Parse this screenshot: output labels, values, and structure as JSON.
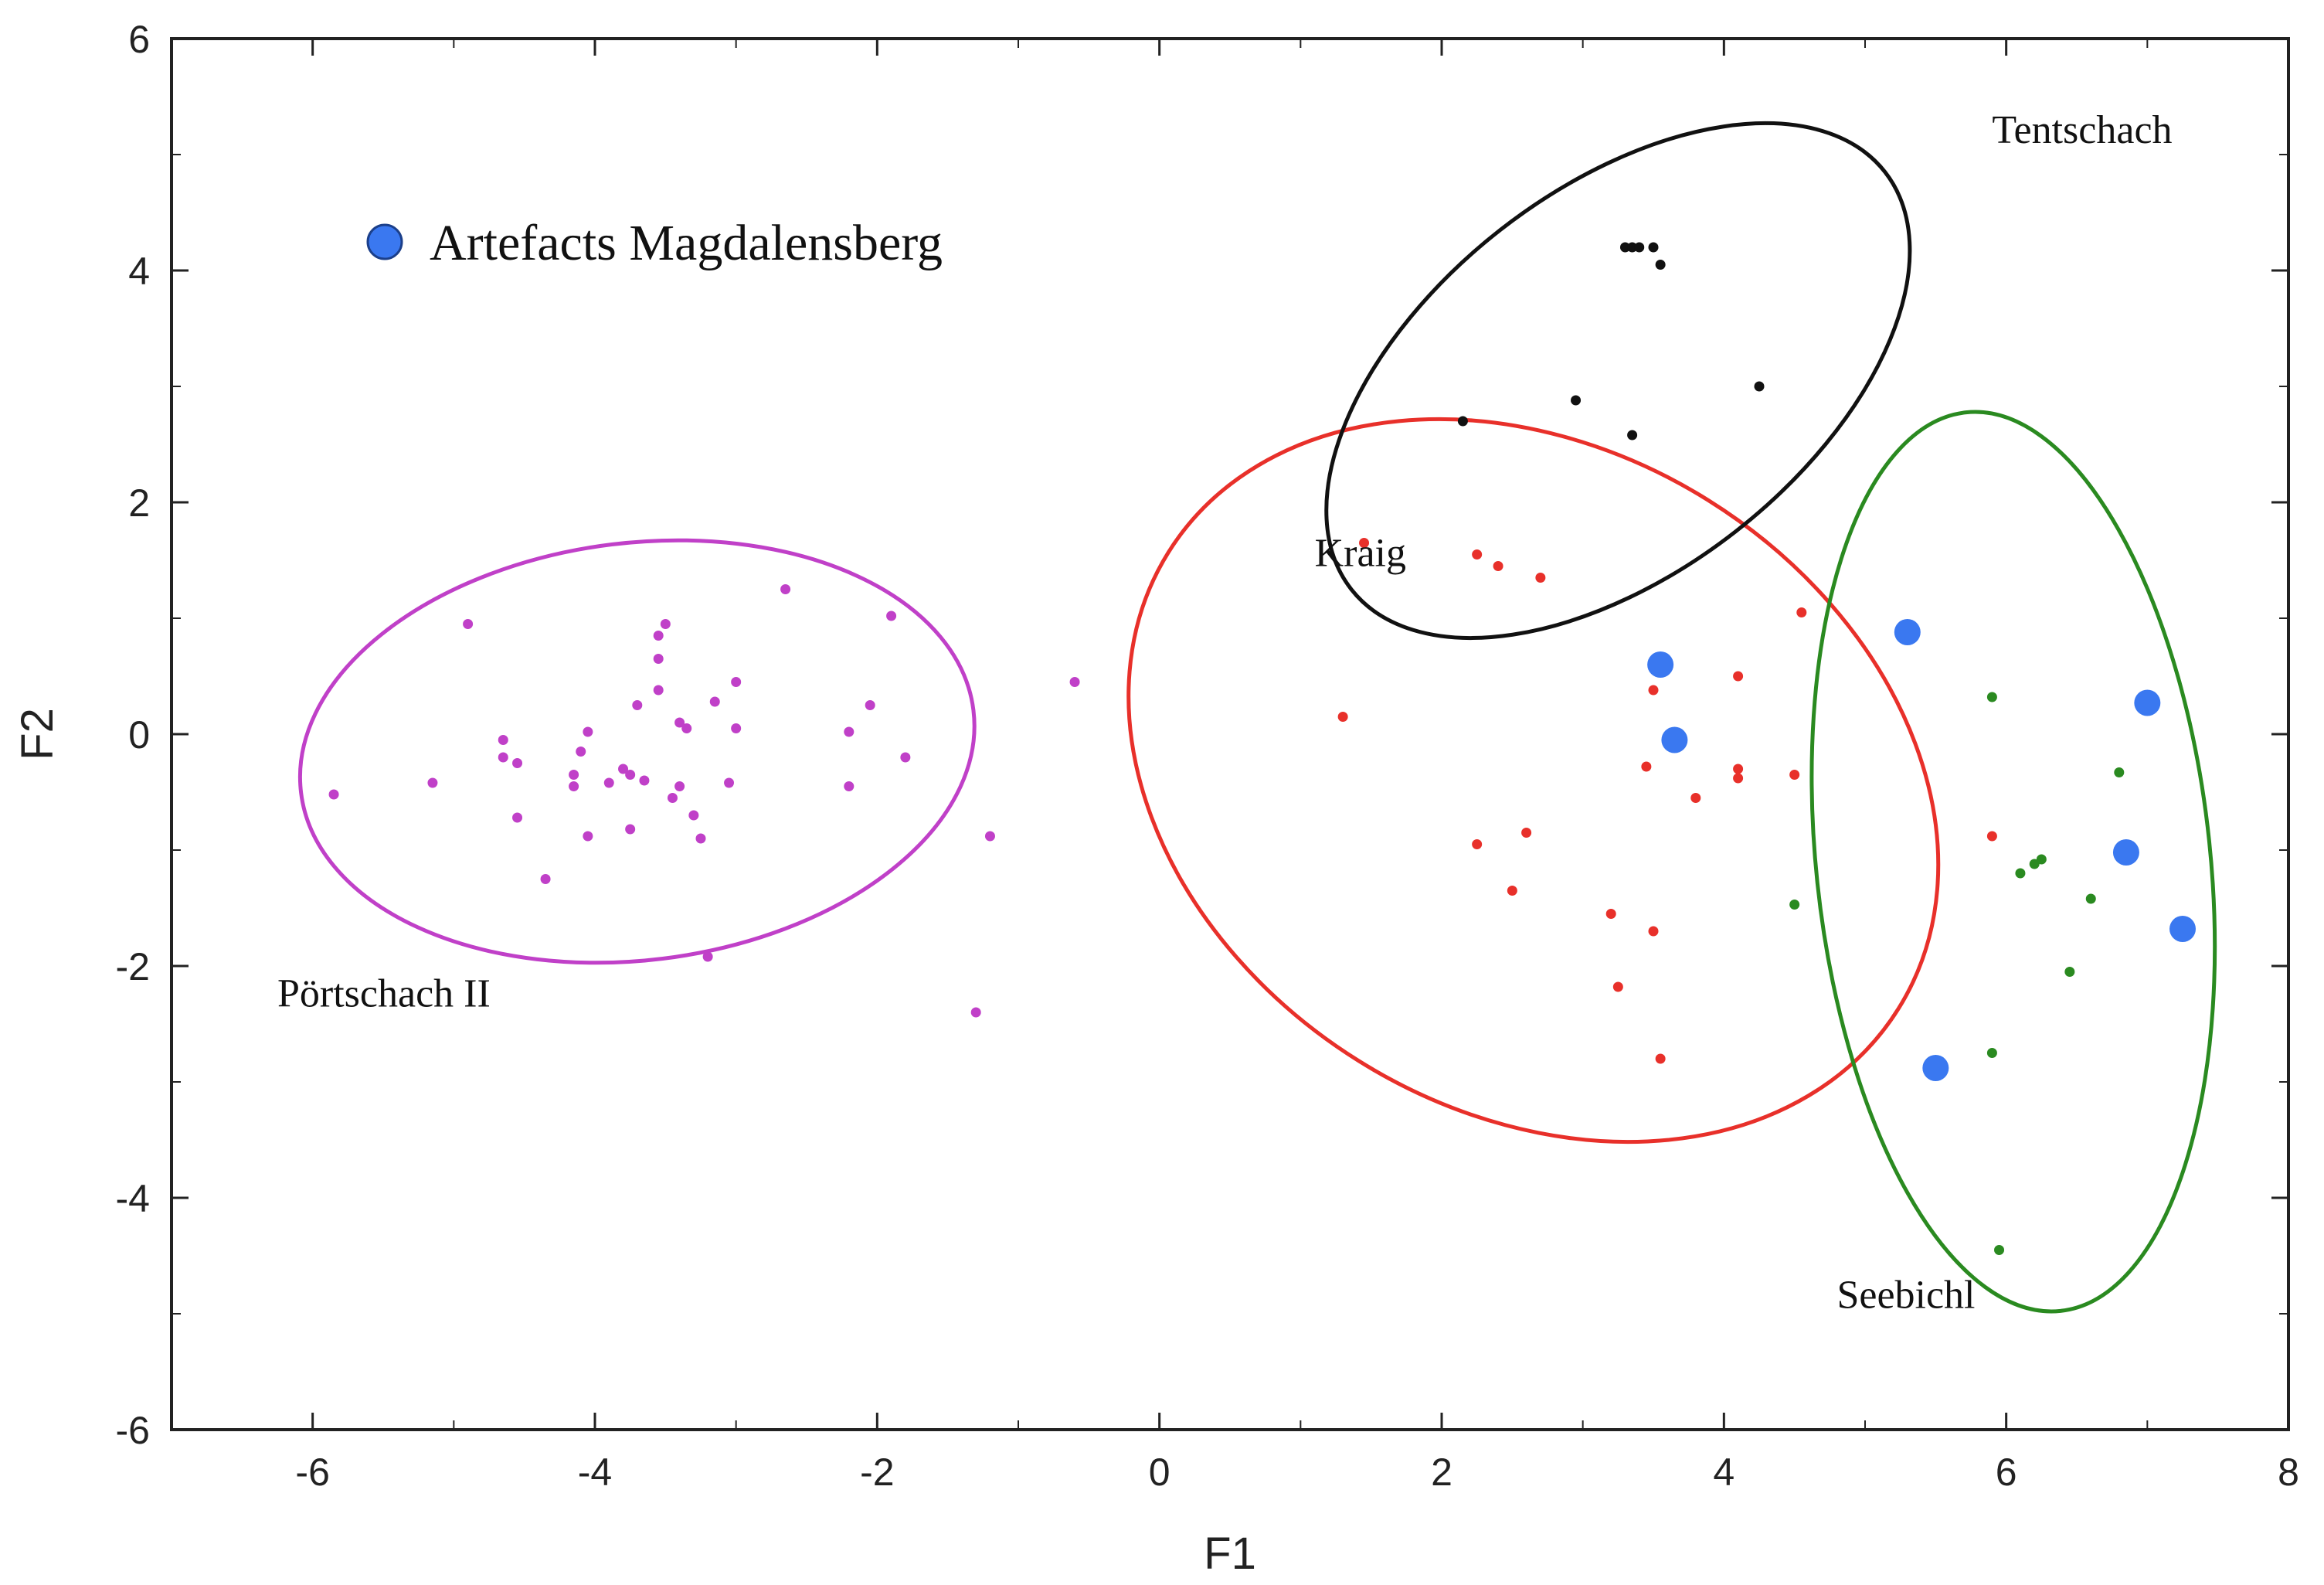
{
  "chart_data": {
    "type": "scatter",
    "title": "",
    "xlabel": "F1",
    "ylabel": "F2",
    "xlim": [
      -7,
      8
    ],
    "ylim": [
      -6,
      6
    ],
    "x_ticks": [
      -6,
      -4,
      -2,
      0,
      2,
      4,
      6,
      8
    ],
    "y_ticks": [
      -6,
      -4,
      -2,
      0,
      2,
      4,
      6
    ],
    "x_tick_labels": [
      "-6",
      "-4",
      "-2",
      "0",
      "2",
      "4",
      "6",
      "8"
    ],
    "y_tick_labels": [
      "-6",
      "-4",
      "-2",
      "0",
      "2",
      "4",
      "6"
    ],
    "grid": false,
    "legend": {
      "position": "top-left",
      "entries": [
        {
          "label": "Artefacts Magdalensberg",
          "color": "#3a78f0"
        }
      ]
    },
    "series": [
      {
        "name": "Pörtschach II",
        "color": "#c040c8",
        "ellipse": {
          "cx": -3.7,
          "cy": -0.15,
          "rx": 2.4,
          "ry": 1.8,
          "rotation": 7
        },
        "points": [
          [
            -5.85,
            -0.52
          ],
          [
            -5.15,
            -0.42
          ],
          [
            -4.9,
            0.95
          ],
          [
            -4.65,
            -0.05
          ],
          [
            -4.65,
            -0.2
          ],
          [
            -4.55,
            -0.25
          ],
          [
            -4.55,
            -0.72
          ],
          [
            -4.35,
            -1.25
          ],
          [
            -4.15,
            -0.35
          ],
          [
            -4.15,
            -0.45
          ],
          [
            -4.1,
            -0.15
          ],
          [
            -4.05,
            0.02
          ],
          [
            -4.05,
            -0.88
          ],
          [
            -3.9,
            -0.42
          ],
          [
            -3.8,
            -0.3
          ],
          [
            -3.75,
            -0.35
          ],
          [
            -3.75,
            -0.82
          ],
          [
            -3.7,
            0.25
          ],
          [
            -3.65,
            -0.4
          ],
          [
            -3.55,
            0.38
          ],
          [
            -3.55,
            0.65
          ],
          [
            -3.55,
            0.85
          ],
          [
            -3.5,
            0.95
          ],
          [
            -3.45,
            -0.55
          ],
          [
            -3.4,
            0.1
          ],
          [
            -3.4,
            -0.45
          ],
          [
            -3.35,
            0.05
          ],
          [
            -3.3,
            -0.7
          ],
          [
            -3.25,
            -0.9
          ],
          [
            -3.2,
            -1.92
          ],
          [
            -3.15,
            0.28
          ],
          [
            -3.05,
            -0.42
          ],
          [
            -3.0,
            0.45
          ],
          [
            -3.0,
            0.05
          ],
          [
            -2.65,
            1.25
          ],
          [
            -2.2,
            0.02
          ],
          [
            -2.2,
            -0.45
          ],
          [
            -2.05,
            0.25
          ],
          [
            -1.9,
            1.02
          ],
          [
            -1.8,
            -0.2
          ],
          [
            -1.3,
            -2.4
          ],
          [
            -1.2,
            -0.88
          ],
          [
            -0.6,
            0.45
          ]
        ]
      },
      {
        "name": "Kraig",
        "color": "#e8302a",
        "ellipse": {
          "cx": 2.65,
          "cy": -0.4,
          "rx": 3.05,
          "ry": 2.85,
          "rotation": -32
        },
        "points": [
          [
            1.3,
            0.15
          ],
          [
            1.45,
            1.65
          ],
          [
            2.25,
            1.55
          ],
          [
            2.25,
            -0.95
          ],
          [
            2.4,
            1.45
          ],
          [
            2.5,
            -1.35
          ],
          [
            2.6,
            -0.85
          ],
          [
            2.7,
            1.35
          ],
          [
            3.2,
            -1.55
          ],
          [
            3.25,
            -2.18
          ],
          [
            3.45,
            -0.28
          ],
          [
            3.5,
            0.38
          ],
          [
            3.5,
            -1.7
          ],
          [
            3.55,
            -2.8
          ],
          [
            3.8,
            -0.55
          ],
          [
            4.1,
            -0.3
          ],
          [
            4.1,
            -0.38
          ],
          [
            4.1,
            0.5
          ],
          [
            4.5,
            -0.35
          ],
          [
            4.55,
            1.05
          ],
          [
            5.9,
            -0.88
          ]
        ]
      },
      {
        "name": "Tentschach",
        "color": "#111111",
        "ellipse": {
          "cx": 3.25,
          "cy": 3.05,
          "rx": 2.4,
          "ry": 1.65,
          "rotation": 38
        },
        "points": [
          [
            2.15,
            2.7
          ],
          [
            2.95,
            2.88
          ],
          [
            3.3,
            4.2
          ],
          [
            3.35,
            2.58
          ],
          [
            3.35,
            4.2
          ],
          [
            3.4,
            4.2
          ],
          [
            3.5,
            4.2
          ],
          [
            3.55,
            4.05
          ],
          [
            4.25,
            3.0
          ]
        ]
      },
      {
        "name": "Seebichl",
        "color": "#2a8a20",
        "ellipse": {
          "cx": 6.05,
          "cy": -1.1,
          "rx": 3.2,
          "ry": 1.7,
          "rotation": 96
        },
        "points": [
          [
            4.5,
            -1.47
          ],
          [
            5.9,
            0.32
          ],
          [
            5.9,
            -2.75
          ],
          [
            5.95,
            -4.45
          ],
          [
            6.1,
            -1.2
          ],
          [
            6.2,
            -1.12
          ],
          [
            6.25,
            -1.08
          ],
          [
            6.45,
            -2.05
          ],
          [
            6.6,
            -1.42
          ],
          [
            6.8,
            -0.33
          ]
        ]
      },
      {
        "name": "Artefacts Magdalensberg",
        "color": "#3a78f0",
        "points": [
          [
            3.55,
            0.6
          ],
          [
            3.65,
            -0.05
          ],
          [
            5.3,
            0.88
          ],
          [
            5.5,
            -2.88
          ],
          [
            6.85,
            -1.02
          ],
          [
            7.0,
            0.27
          ],
          [
            7.25,
            -1.68
          ]
        ]
      }
    ],
    "annotations": [
      {
        "text": "Tentschach",
        "x": 5.9,
        "y": 5.1
      },
      {
        "text": "Kraig",
        "x": 1.1,
        "y": 1.45
      },
      {
        "text": "Pörtschach II",
        "x": -6.25,
        "y": -2.35
      },
      {
        "text": "Seebichl",
        "x": 4.8,
        "y": -4.95
      }
    ]
  }
}
